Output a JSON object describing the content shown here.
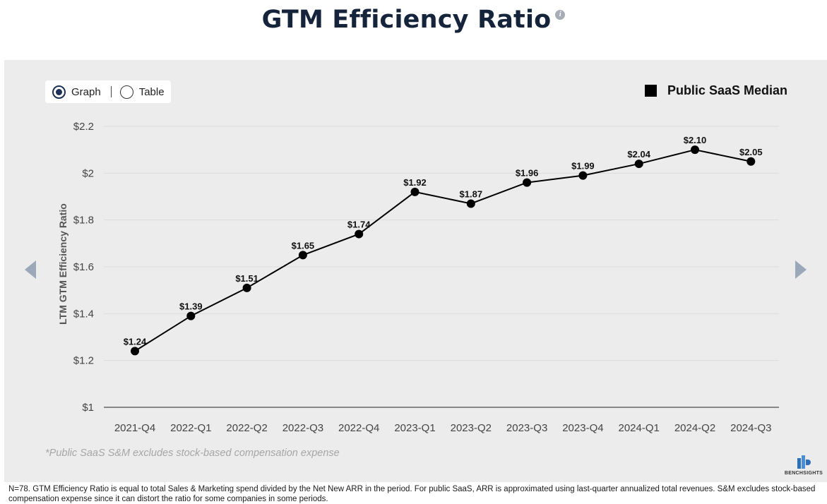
{
  "title": "GTM Efficiency Ratio",
  "info_icon": "info-icon",
  "toggle": {
    "graph_label": "Graph",
    "table_label": "Table",
    "selected": "Graph"
  },
  "legend": {
    "label": "Public SaaS Median",
    "color": "#000000"
  },
  "footnote": "*Public SaaS S&M excludes stock-based compensation expense",
  "brand": {
    "name": "BENCHSIGHTS",
    "icon": "benchsights-logo-icon"
  },
  "bottom_note": "N=78. GTM Efficiency Ratio is equal to total Sales & Marketing spend divided by the Net New ARR in the period. For public SaaS, ARR is approximated using last-quarter annualized total revenues. S&M excludes stock-based compensation expense since it can distort the ratio for some companies in some periods.",
  "nav": {
    "prev_icon": "chevron-left-icon",
    "next_icon": "chevron-right-icon"
  },
  "chart_data": {
    "type": "line",
    "ylabel": "LTM GTM Efficiency Ratio",
    "xlabel": "",
    "ylim": [
      1,
      2.2
    ],
    "yticks": [
      1,
      1.2,
      1.4,
      1.6,
      1.8,
      2,
      2.2
    ],
    "ytick_labels": [
      "$1",
      "$1.2",
      "$1.4",
      "$1.6",
      "$1.8",
      "$2",
      "$2.2"
    ],
    "grid": true,
    "legend_position": "top-right",
    "categories": [
      "2021-Q4",
      "2022-Q1",
      "2022-Q2",
      "2022-Q3",
      "2022-Q4",
      "2023-Q1",
      "2023-Q2",
      "2023-Q3",
      "2023-Q4",
      "2024-Q1",
      "2024-Q2",
      "2024-Q3"
    ],
    "series": [
      {
        "name": "Public SaaS Median",
        "color": "#000000",
        "values": [
          1.24,
          1.39,
          1.51,
          1.65,
          1.74,
          1.92,
          1.87,
          1.96,
          1.99,
          2.04,
          2.1,
          2.05
        ],
        "labels": [
          "$1.24",
          "$1.39",
          "$1.51",
          "$1.65",
          "$1.74",
          "$1.92",
          "$1.87",
          "$1.96",
          "$1.99",
          "$2.04",
          "$2.10",
          "$2.05"
        ]
      }
    ]
  }
}
